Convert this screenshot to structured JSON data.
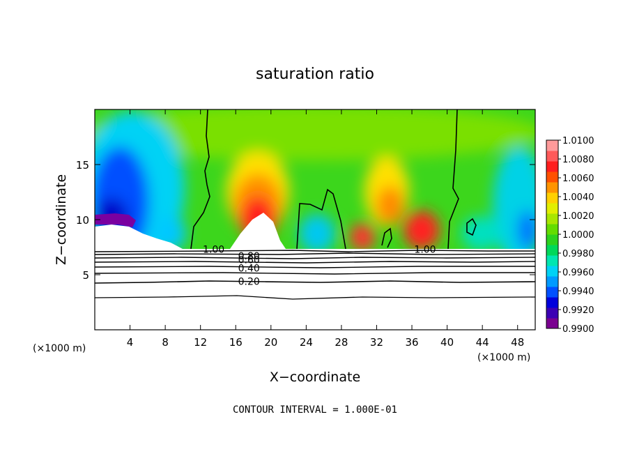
{
  "chart_data": {
    "type": "heatmap",
    "title": "saturation ratio",
    "xlabel": "X−coordinate",
    "ylabel": "Z−coordinate",
    "x_unit_left": "(×1000 m)",
    "x_unit_right": "(×1000 m)",
    "xlim": [
      0,
      50
    ],
    "ylim": [
      0,
      20
    ],
    "x_ticks": [
      4,
      8,
      12,
      16,
      20,
      24,
      28,
      32,
      36,
      40,
      44,
      48
    ],
    "x_tick_labels": [
      "4",
      "8",
      "12",
      "16",
      "20",
      "24",
      "28",
      "32",
      "36",
      "40",
      "44",
      "48"
    ],
    "y_ticks": [
      5,
      10,
      15
    ],
    "y_tick_labels": [
      "5",
      "10",
      "15"
    ],
    "colorbar": {
      "min": 0.99,
      "max": 1.01,
      "labels": [
        "1.0100",
        "1.0080",
        "1.0060",
        "1.0040",
        "1.0020",
        "1.0000",
        "0.9980",
        "0.9960",
        "0.9940",
        "0.9920",
        "0.9900"
      ],
      "colors": [
        "#7a0090",
        "#3c00b4",
        "#0000dc",
        "#0050ff",
        "#009aff",
        "#00d2f5",
        "#00e6b0",
        "#00d85a",
        "#2cd21e",
        "#64dc00",
        "#a8e600",
        "#e2ee00",
        "#ffd000",
        "#ff9400",
        "#ff5000",
        "#ff1e1e",
        "#ff5a5a",
        "#ff9a9a"
      ]
    },
    "contour_labels": [
      {
        "text": "1.00",
        "x": 13.5,
        "y": 7.3
      },
      {
        "text": "1.00",
        "x": 37.5,
        "y": 7.3
      },
      {
        "text": "0.80",
        "x": 17.5,
        "y": 6.7
      },
      {
        "text": "0.60",
        "x": 17.5,
        "y": 6.35
      },
      {
        "text": "0.40",
        "x": 17.5,
        "y": 5.6
      },
      {
        "text": "0.20",
        "x": 17.5,
        "y": 4.4
      }
    ],
    "contour_interval_text": "CONTOUR INTERVAL =  1.000E-01",
    "grid": false,
    "legend": "right colorbar"
  }
}
